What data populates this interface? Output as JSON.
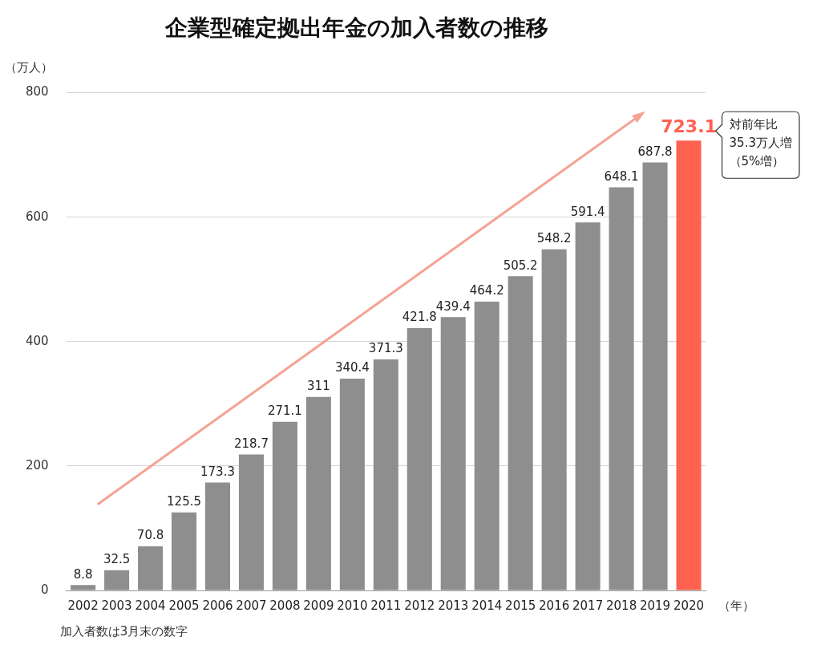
{
  "chart_data": {
    "type": "bar",
    "title": "企業型確定拠出年金の加入者数の推移",
    "y_label": "（万人）",
    "x_label": "（年）",
    "note": "加入者数は3月末の数字",
    "annotation": [
      "対前年比",
      "35.3万人増",
      "（5%増）"
    ],
    "categories": [
      "2002",
      "2003",
      "2004",
      "2005",
      "2006",
      "2007",
      "2008",
      "2009",
      "2010",
      "2011",
      "2012",
      "2013",
      "2014",
      "2015",
      "2016",
      "2017",
      "2018",
      "2019",
      "2020"
    ],
    "values": [
      8.8,
      32.5,
      70.8,
      125.5,
      173.3,
      218.7,
      271.1,
      311,
      340.4,
      371.3,
      421.8,
      439.4,
      464.2,
      505.2,
      548.2,
      591.4,
      648.1,
      687.8,
      723.1
    ],
    "colors": [
      "#8e8e8e",
      "#8e8e8e",
      "#8e8e8e",
      "#8e8e8e",
      "#8e8e8e",
      "#8e8e8e",
      "#8e8e8e",
      "#8e8e8e",
      "#8e8e8e",
      "#8e8e8e",
      "#8e8e8e",
      "#8e8e8e",
      "#8e8e8e",
      "#8e8e8e",
      "#8e8e8e",
      "#8e8e8e",
      "#8e8e8e",
      "#8e8e8e",
      "#ff6150"
    ],
    "ylim": [
      0,
      800
    ],
    "yticks": [
      0,
      200,
      400,
      600,
      800
    ],
    "grid": true,
    "data_labels": true
  }
}
